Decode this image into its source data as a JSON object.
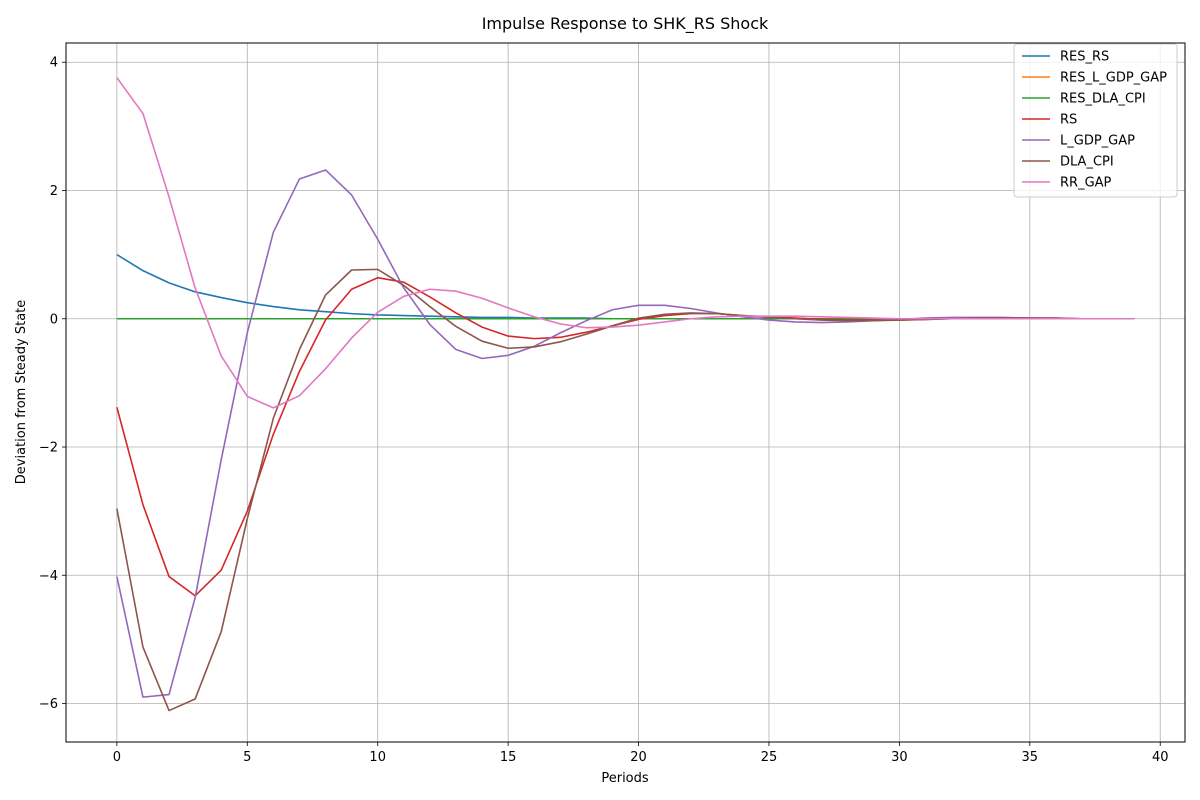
{
  "chart_data": {
    "type": "line",
    "title": "Impulse Response to SHK_RS Shock",
    "xlabel": "Periods",
    "ylabel": "Deviation from Steady State",
    "xlim": [
      -1.95,
      40.95
    ],
    "ylim": [
      -6.6,
      4.3
    ],
    "xticks": [
      0,
      5,
      10,
      15,
      20,
      25,
      30,
      35,
      40
    ],
    "yticks": [
      -6,
      -4,
      -2,
      0,
      2,
      4
    ],
    "ytick_labels": [
      "−6",
      "−4",
      "−2",
      "0",
      "2",
      "4"
    ],
    "grid": true,
    "legend_position": "top-right",
    "x": [
      0,
      1,
      2,
      3,
      4,
      5,
      6,
      7,
      8,
      9,
      10,
      11,
      12,
      13,
      14,
      15,
      16,
      17,
      18,
      19,
      20,
      21,
      22,
      23,
      24,
      25,
      26,
      27,
      28,
      29,
      30,
      31,
      32,
      33,
      34,
      35,
      36,
      37,
      38,
      39
    ],
    "series": [
      {
        "name": "RES_RS",
        "color": "#1f77b4",
        "values": [
          1.0,
          0.75,
          0.56,
          0.42,
          0.33,
          0.25,
          0.19,
          0.14,
          0.11,
          0.08,
          0.06,
          0.05,
          0.04,
          0.03,
          0.02,
          0.02,
          0.01,
          0.01,
          0.01,
          0.0,
          0.0,
          0.0,
          0.0,
          0.0,
          0.0,
          0.0,
          0.0,
          0.0,
          0.0,
          0.0,
          0.0,
          0.0,
          0.0,
          0.0,
          0.0,
          0.0,
          0.0,
          0.0,
          0.0,
          0.0
        ]
      },
      {
        "name": "RES_L_GDP_GAP",
        "color": "#ff7f0e",
        "values": [
          0,
          0,
          0,
          0,
          0,
          0,
          0,
          0,
          0,
          0,
          0,
          0,
          0,
          0,
          0,
          0,
          0,
          0,
          0,
          0,
          0,
          0,
          0,
          0,
          0,
          0,
          0,
          0,
          0,
          0,
          0,
          0,
          0,
          0,
          0,
          0,
          0,
          0,
          0,
          0
        ]
      },
      {
        "name": "RES_DLA_CPI",
        "color": "#2ca02c",
        "values": [
          0,
          0,
          0,
          0,
          0,
          0,
          0,
          0,
          0,
          0,
          0,
          0,
          0,
          0,
          0,
          0,
          0,
          0,
          0,
          0,
          0,
          0,
          0,
          0,
          0,
          0,
          0,
          0,
          0,
          0,
          0,
          0,
          0,
          0,
          0,
          0,
          0,
          0,
          0,
          0
        ]
      },
      {
        "name": "RS",
        "color": "#d62728",
        "values": [
          -1.38,
          -2.9,
          -4.02,
          -4.32,
          -3.92,
          -3.0,
          -1.8,
          -0.82,
          -0.02,
          0.46,
          0.64,
          0.57,
          0.34,
          0.09,
          -0.13,
          -0.27,
          -0.31,
          -0.29,
          -0.21,
          -0.11,
          -0.01,
          0.05,
          0.08,
          0.08,
          0.05,
          0.03,
          0.01,
          -0.01,
          -0.02,
          -0.02,
          -0.02,
          -0.01,
          0.0,
          0.0,
          0.01,
          0.01,
          0.0,
          0.0,
          0.0,
          0.0
        ]
      },
      {
        "name": "L_GDP_GAP",
        "color": "#9467bd",
        "values": [
          -4.02,
          -5.9,
          -5.86,
          -4.35,
          -2.2,
          -0.22,
          1.35,
          2.18,
          2.32,
          1.93,
          1.24,
          0.48,
          -0.09,
          -0.48,
          -0.62,
          -0.57,
          -0.43,
          -0.22,
          -0.03,
          0.14,
          0.21,
          0.21,
          0.16,
          0.09,
          0.03,
          -0.02,
          -0.05,
          -0.06,
          -0.05,
          -0.03,
          -0.01,
          0.01,
          0.02,
          0.02,
          0.02,
          0.01,
          0.01,
          0.0,
          0.0,
          0.0
        ]
      },
      {
        "name": "DLA_CPI",
        "color": "#8c564b",
        "values": [
          -2.96,
          -5.12,
          -6.11,
          -5.93,
          -4.88,
          -3.12,
          -1.55,
          -0.48,
          0.37,
          0.76,
          0.77,
          0.52,
          0.19,
          -0.12,
          -0.35,
          -0.46,
          -0.44,
          -0.36,
          -0.24,
          -0.11,
          0.01,
          0.07,
          0.09,
          0.08,
          0.05,
          0.02,
          0.0,
          -0.02,
          -0.03,
          -0.03,
          -0.02,
          -0.01,
          0.0,
          0.01,
          0.01,
          0.01,
          0.01,
          0.0,
          0.0,
          0.0
        ]
      },
      {
        "name": "RR_GAP",
        "color": "#e377c2",
        "values": [
          3.76,
          3.2,
          1.9,
          0.48,
          -0.58,
          -1.21,
          -1.39,
          -1.2,
          -0.78,
          -0.3,
          0.1,
          0.35,
          0.46,
          0.43,
          0.32,
          0.17,
          0.03,
          -0.08,
          -0.14,
          -0.13,
          -0.1,
          -0.05,
          0.0,
          0.03,
          0.04,
          0.04,
          0.04,
          0.03,
          0.02,
          0.01,
          0.0,
          0.0,
          0.0,
          0.0,
          0.0,
          0.0,
          0.0,
          0.0,
          0.0,
          0.0
        ]
      }
    ]
  }
}
